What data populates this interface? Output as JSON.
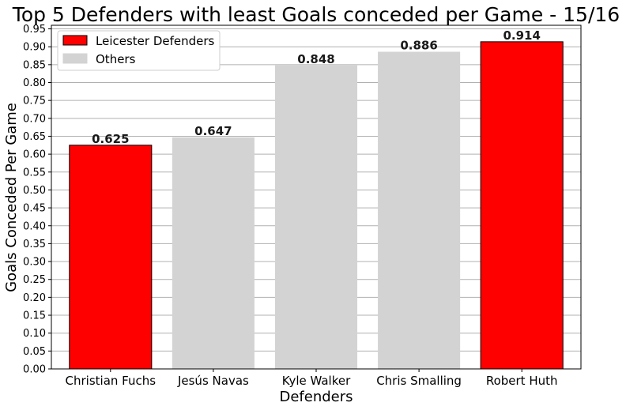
{
  "chart_data": {
    "type": "bar",
    "title": "Top 5 Defenders with least Goals conceded per Game - 15/16",
    "xlabel": "Defenders",
    "ylabel": "Goals Conceded Per Game",
    "categories": [
      "Christian Fuchs",
      "Jesús Navas",
      "Kyle Walker",
      "Chris Smalling",
      "Robert Huth"
    ],
    "values": [
      0.625,
      0.647,
      0.848,
      0.886,
      0.914
    ],
    "value_labels": [
      "0.625",
      "0.647",
      "0.848",
      "0.886",
      "0.914"
    ],
    "groups": [
      "Leicester Defenders",
      "Others",
      "Others",
      "Others",
      "Leicester Defenders"
    ],
    "ylim": [
      0,
      0.96
    ],
    "yticks": [
      "0.00",
      "0.05",
      "0.10",
      "0.15",
      "0.20",
      "0.25",
      "0.30",
      "0.35",
      "0.40",
      "0.45",
      "0.50",
      "0.55",
      "0.60",
      "0.65",
      "0.70",
      "0.75",
      "0.80",
      "0.85",
      "0.90",
      "0.95"
    ],
    "grid": "horizontal",
    "legend": {
      "placement": "top-left",
      "entries": [
        {
          "label": "Leicester Defenders",
          "color": "#ff0000",
          "edge": "#000000"
        },
        {
          "label": "Others",
          "color": "#d3d3d3",
          "edge": "#d3d3d3"
        }
      ]
    },
    "colors": {
      "Leicester Defenders": "#ff0000",
      "Others": "#d3d3d3"
    }
  }
}
